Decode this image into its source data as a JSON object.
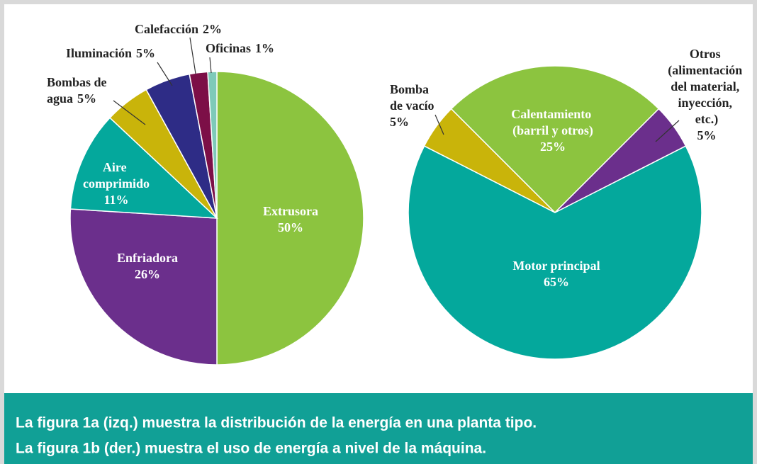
{
  "chart_data": [
    {
      "type": "pie",
      "categories": [
        "Extrusora",
        "Enfriadora",
        "Aire comprimido",
        "Bombas de agua",
        "Iluminación",
        "Calefacción",
        "Oficinas"
      ],
      "values": [
        50,
        26,
        11,
        5,
        5,
        2,
        1
      ],
      "value_labels": [
        "50%",
        "26%",
        "11%",
        "5%",
        "5%",
        "2%",
        "1%"
      ],
      "colors": [
        "#8cc43f",
        "#6b2f8c",
        "#04a89c",
        "#c9b40a",
        "#2e2c86",
        "#7c0f47",
        "#7ecab9"
      ]
    },
    {
      "type": "pie",
      "categories": [
        "Motor principal",
        "Bomba de vacío",
        "Calentamiento (barril y otros)",
        "Otros (alimentación del material, inyección, etc.)"
      ],
      "values": [
        65,
        5,
        25,
        5
      ],
      "value_labels": [
        "65%",
        "5%",
        "25%",
        "5%"
      ],
      "colors": [
        "#04a89c",
        "#c9b40a",
        "#8cc43f",
        "#6b2f8c"
      ]
    }
  ],
  "caption": [
    "La figura 1a (izq.) muestra la distribución de la energía en una planta tipo.",
    "La figura 1b (der.) muestra el uso de energía a nivel de la máquina."
  ]
}
